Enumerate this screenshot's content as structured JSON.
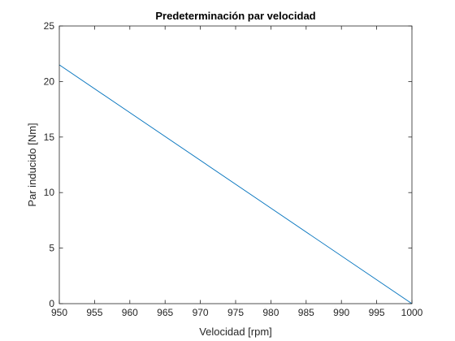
{
  "chart_data": {
    "type": "line",
    "title": "Predeterminación par velocidad",
    "xlabel": "Velocidad [rpm]",
    "ylabel": "Par inducido [Nm]",
    "xlim": [
      950,
      1000
    ],
    "ylim": [
      0,
      25
    ],
    "xticks": [
      "950",
      "955",
      "960",
      "965",
      "970",
      "975",
      "980",
      "985",
      "990",
      "995",
      "1000"
    ],
    "yticks": [
      "0",
      "5",
      "10",
      "15",
      "20",
      "25"
    ],
    "grid": false,
    "series": [
      {
        "x": [
          950,
          1000
        ],
        "y": [
          21.5,
          0
        ],
        "color": "#0072BD"
      }
    ]
  },
  "colors": {
    "axis": "#262626",
    "line": "#0072BD",
    "background": "#ffffff"
  }
}
